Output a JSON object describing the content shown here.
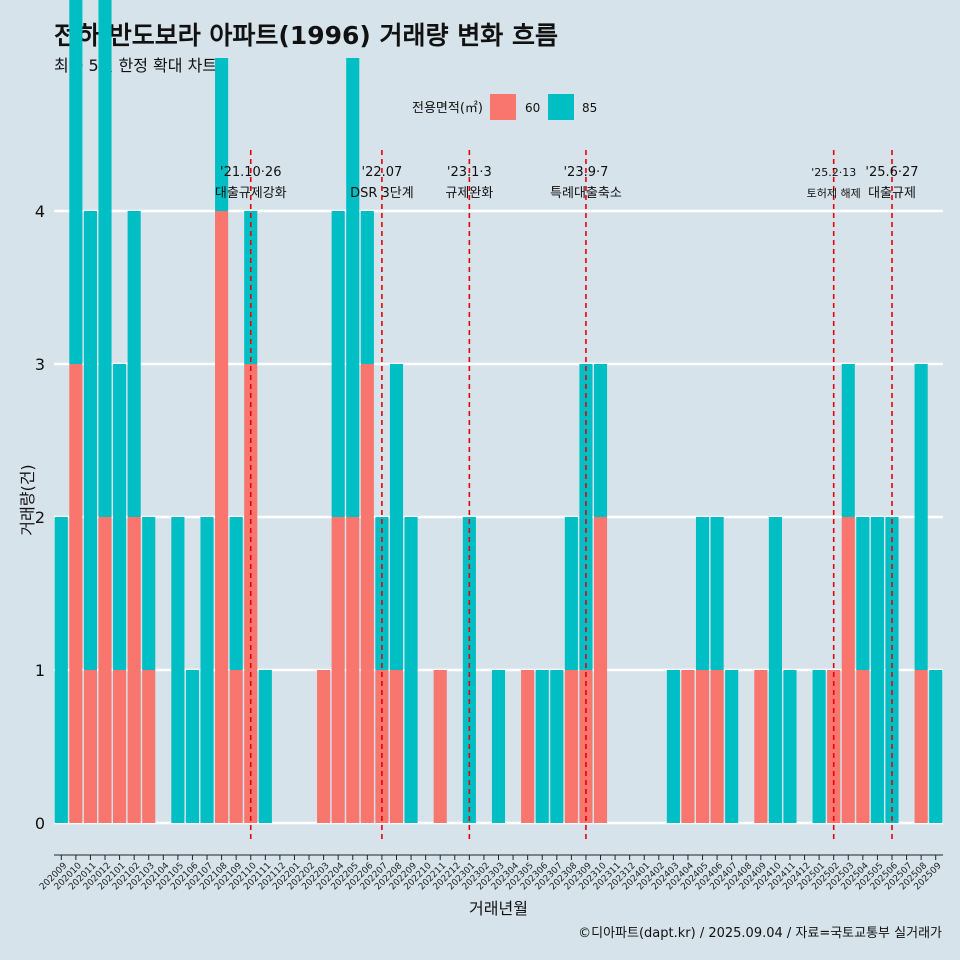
{
  "header": {
    "title": "전하 반도보라 아파트(1996) 거래량 변화 흐름",
    "subtitle": "최근 5년 한정 확대 차트"
  },
  "caption": "©디아파트(dapt.kr) / 2025.09.04 / 자료=국토교통부 실거래가",
  "colors": {
    "background": "#d6e3ea",
    "s60": "#f8766d",
    "s85": "#00bfc4",
    "event_line": "#e8000b",
    "gridline": "#ffffff"
  },
  "chart_data": {
    "type": "bar",
    "xlabel": "거래년월",
    "ylabel": "거래량(건)",
    "ylim": [
      0,
      4
    ],
    "y_ticks": [
      "0",
      "1",
      "2",
      "3",
      "4"
    ],
    "grid": true,
    "legend": {
      "title": "전용면적(㎡)",
      "position": "top"
    },
    "categories": [
      "202009",
      "202010",
      "202011",
      "202012",
      "202101",
      "202102",
      "202103",
      "202104",
      "202105",
      "202106",
      "202107",
      "202108",
      "202109",
      "202110",
      "202111",
      "202112",
      "202201",
      "202202",
      "202203",
      "202204",
      "202205",
      "202206",
      "202207",
      "202208",
      "202209",
      "202210",
      "202211",
      "202212",
      "202301",
      "202302",
      "202303",
      "202304",
      "202305",
      "202306",
      "202307",
      "202308",
      "202309",
      "202310",
      "202311",
      "202312",
      "202401",
      "202402",
      "202403",
      "202404",
      "202405",
      "202406",
      "202407",
      "202408",
      "202409",
      "202410",
      "202411",
      "202412",
      "202501",
      "202502",
      "202503",
      "202504",
      "202505",
      "202506",
      "202507",
      "202508",
      "202509"
    ],
    "series": [
      {
        "name": "60",
        "values": [
          0,
          3,
          1,
          2,
          1,
          2,
          1,
          0,
          0,
          0,
          0,
          4,
          1,
          3,
          0,
          0,
          0,
          0,
          1,
          2,
          2,
          3,
          1,
          1,
          0,
          0,
          1,
          0,
          0,
          0,
          0,
          0,
          1,
          0,
          0,
          1,
          1,
          2,
          0,
          0,
          0,
          0,
          0,
          1,
          1,
          1,
          0,
          0,
          1,
          0,
          0,
          0,
          0,
          1,
          2,
          1,
          0,
          0,
          0,
          1,
          0
        ]
      },
      {
        "name": "85",
        "values": [
          2,
          3,
          3,
          4,
          2,
          2,
          1,
          0,
          2,
          1,
          2,
          1,
          1,
          1,
          1,
          0,
          0,
          0,
          0,
          2,
          3,
          1,
          1,
          2,
          2,
          0,
          0,
          0,
          2,
          0,
          1,
          0,
          0,
          1,
          1,
          1,
          2,
          1,
          0,
          0,
          0,
          0,
          1,
          0,
          1,
          1,
          1,
          0,
          0,
          2,
          1,
          0,
          1,
          0,
          1,
          1,
          2,
          2,
          0,
          2,
          1
        ]
      }
    ],
    "annotations": [
      {
        "category": "202110",
        "date": "'21.10·26",
        "label": "대출규제강화"
      },
      {
        "category": "202207",
        "date": "'22.07",
        "label": "DSR 3단계"
      },
      {
        "category": "202301",
        "date": "'23.1·3",
        "label": "규제완화"
      },
      {
        "category": "202309",
        "date": "'23.9·7",
        "label": "특례대출축소"
      },
      {
        "category": "202502",
        "date": "'25.2·13",
        "label": "토허제 해제",
        "small": true
      },
      {
        "category": "202506",
        "date": "'25.6·27",
        "label": "대출규제"
      }
    ]
  }
}
